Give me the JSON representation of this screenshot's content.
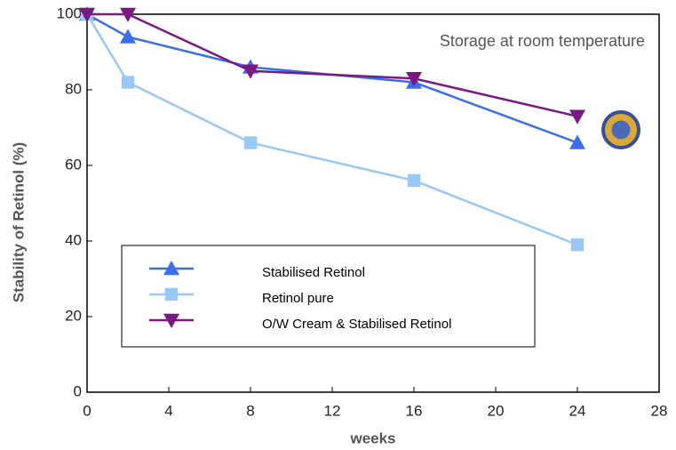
{
  "chart_data": {
    "type": "line",
    "annotation": "Storage at room temperature",
    "x_label": "weeks",
    "y_label": "Stability of Retinol (%)",
    "x": [
      0,
      2,
      8,
      16,
      24
    ],
    "series": [
      {
        "name": "Stabilised Retinol",
        "color": "#3b6ee8",
        "marker": "triangle-up",
        "values": [
          100,
          94,
          86,
          82,
          66
        ]
      },
      {
        "name": "Retinol pure",
        "color": "#99c8f5",
        "marker": "square",
        "values": [
          100,
          82,
          66,
          56,
          39
        ]
      },
      {
        "name": "O/W Cream & Stabilised Retinol",
        "color": "#7a1a80",
        "marker": "triangle-down",
        "values": [
          100,
          100,
          85,
          83,
          73
        ]
      }
    ],
    "xlim": [
      0,
      28
    ],
    "xticks": [
      0,
      4,
      8,
      12,
      16,
      20,
      24,
      28
    ],
    "ylim": [
      0,
      100
    ],
    "yticks": [
      0,
      20,
      40,
      60,
      80,
      100
    ]
  }
}
